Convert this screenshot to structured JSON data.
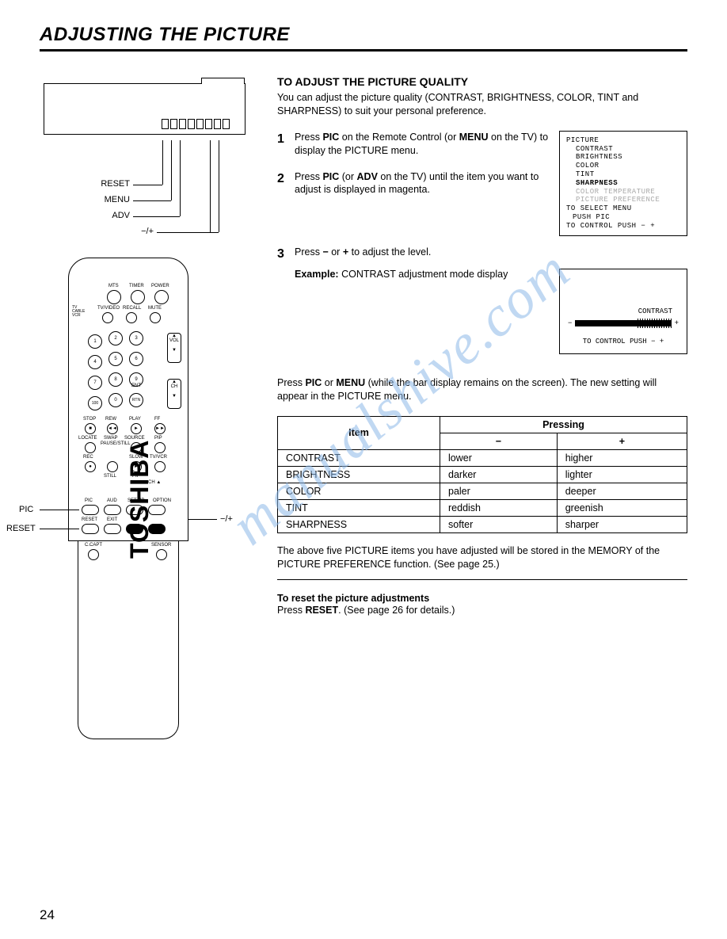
{
  "page_title": "ADJUSTING THE PICTURE",
  "page_number": "24",
  "watermark": "manualshive.com",
  "tv_diagram": {
    "labels": {
      "reset": "RESET",
      "menu": "MENU",
      "adv": "ADV",
      "pm": "−/+"
    }
  },
  "remote": {
    "brand": "TOSHIBA",
    "buttons": {
      "mts": "MTS",
      "timer": "TIMER",
      "power": "POWER",
      "tv": "TV",
      "cable": "CABLE",
      "vcr": "VCR",
      "tvvideo": "TV/VIDEO",
      "recall": "RECALL",
      "mute": "MUTE",
      "vol": "VOL",
      "ch": "CH",
      "ent": "ENT",
      "rtn": "RTN",
      "hundred": "100",
      "stop": "STOP",
      "rew": "REW",
      "play": "PLAY",
      "ff": "FF",
      "locate": "LOCATE",
      "swap": "SWAP",
      "source": "SOURCE",
      "pip": "PIP",
      "rec": "REC",
      "pausestill": "PAUSE/STILL",
      "slow": "SLOW",
      "tvvcr": "TV/VCR",
      "still": "STILL",
      "pip2": "PIP",
      "cha": "CH ▲",
      "pic": "PIC",
      "aud": "AUD",
      "setup": "SET UP",
      "option": "OPTION",
      "reset": "RESET",
      "exit": "EXIT",
      "ccapt": "C.CAPT",
      "sensor": "SENSOR"
    },
    "callouts": {
      "pic": "PIC",
      "reset": "RESET",
      "pm": "−/+"
    }
  },
  "section_title": "TO ADJUST THE PICTURE QUALITY",
  "intro": "You can adjust the picture quality (CONTRAST, BRIGHTNESS, COLOR, TINT and SHARPNESS) to suit your personal preference.",
  "steps": [
    {
      "n": "1",
      "t": "Press <b>PIC</b> on the Remote Control (or <b>MENU</b> on the TV) to display the PICTURE menu."
    },
    {
      "n": "2",
      "t": "Press <b>PIC</b> (or <b>ADV</b> on the TV) until the item you want to adjust is displayed in magenta."
    },
    {
      "n": "3",
      "t": "Press <b>−</b> or <b>+</b> to adjust the level."
    }
  ],
  "onscreen_menu": {
    "title": "PICTURE",
    "items": [
      "CONTRAST",
      "BRIGHTNESS",
      "COLOR",
      "TINT",
      "SHARPNESS"
    ],
    "dim_items": [
      "COLOR TEMPERATURE",
      "PICTURE PREFERENCE"
    ],
    "select": "TO SELECT MENU",
    "push": "PUSH PIC",
    "control": "TO CONTROL PUSH − +"
  },
  "example": {
    "label": "Example:",
    "text": "CONTRAST adjustment mode display",
    "box_label": "CONTRAST",
    "box_control": "TO CONTROL PUSH − +"
  },
  "after_steps": "Press <b>PIC</b> or <b>MENU</b> (while the bar display remains on the screen). The new setting will appear in the PICTURE menu.",
  "table": {
    "header_item": "Item",
    "header_pressing": "Pressing",
    "header_minus": "−",
    "header_plus": "+",
    "rows": [
      {
        "item": "CONTRAST",
        "minus": "lower",
        "plus": "higher"
      },
      {
        "item": "BRIGHTNESS",
        "minus": "darker",
        "plus": "lighter"
      },
      {
        "item": "COLOR",
        "minus": "paler",
        "plus": "deeper"
      },
      {
        "item": "TINT",
        "minus": "reddish",
        "plus": "greenish"
      },
      {
        "item": "SHARPNESS",
        "minus": "softer",
        "plus": "sharper"
      }
    ]
  },
  "memory_note": "The above five PICTURE items you have adjusted will be stored in the MEMORY of the PICTURE PREFERENCE function. (See page 25.)",
  "reset": {
    "title": "To reset the picture adjustments",
    "text": "Press <b>RESET</b>. (See page 26 for details.)"
  }
}
